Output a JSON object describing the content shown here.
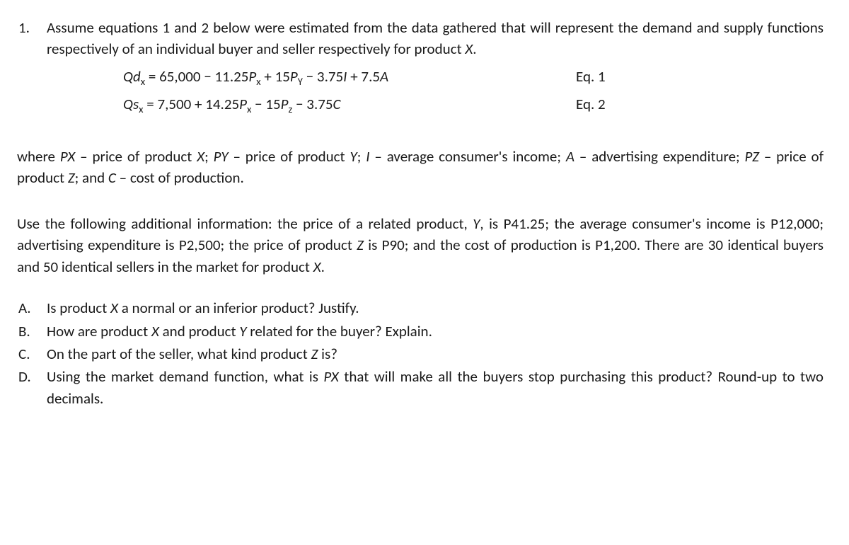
{
  "question_number": "1.",
  "intro": "Assume equations 1 and 2 below were estimated from the data gathered that will represent the demand and supply functions respectively of an individual buyer and seller respectively for product X.",
  "eq1": {
    "lhs_sym": "Qd",
    "lhs_sub": "x",
    "body": "= 65,000 − 11.25Pₓ + 15Pᵧ − 3.75I + 7.5A",
    "label": "Eq. 1"
  },
  "eq2": {
    "lhs_sym": "Qs",
    "lhs_sub": "x",
    "body": "= 7,500 + 14.25Pₓ − 15P𝓏 − 3.75C",
    "label": "Eq. 2"
  },
  "where": "where Pₓ – price of product X; Pᵧ – price of product Y; I – average consumer's income; A – advertising expenditure; P𝓏 – price of product Z; and C – cost of production.",
  "info": "Use the following additional information: the price of a related product, Y, is P41.25; the average consumer's income is P12,000; advertising expenditure is P2,500; the price of product Z is P90; and the cost of production is P1,200. There are 30 identical buyers and 50 identical sellers in the market for product X.",
  "subs": {
    "A": {
      "letter": "A.",
      "text": "Is product X a normal or an inferior product? Justify."
    },
    "B": {
      "letter": "B.",
      "text": "How are product X and product Y related for the buyer? Explain."
    },
    "C": {
      "letter": "C.",
      "text": "On the part of the seller, what kind product Z is?"
    },
    "D": {
      "letter": "D.",
      "text": "Using the market demand function, what is Pₓ that will make all the buyers stop purchasing this product? Round-up to two decimals."
    }
  }
}
